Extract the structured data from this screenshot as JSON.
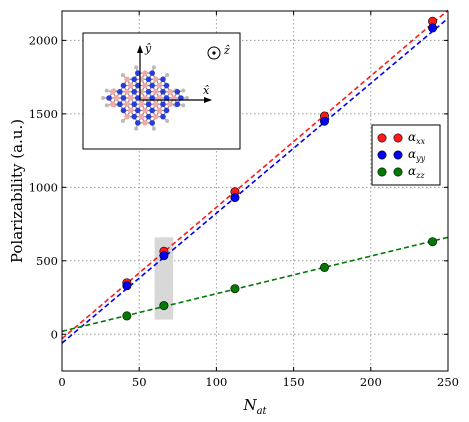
{
  "chart_data": {
    "type": "scatter",
    "xlabel": "N",
    "xlabel_sub": "at",
    "ylabel": "Polarizability (a.u.)",
    "xlim": [
      0,
      250
    ],
    "ylim": [
      -250,
      2200
    ],
    "xticks": [
      0,
      50,
      100,
      150,
      200,
      250
    ],
    "yticks": [
      0,
      500,
      1000,
      1500,
      2000
    ],
    "grid": true,
    "legend_position": "center-right",
    "series": [
      {
        "name": "α",
        "sub": "xx",
        "color": "#ff1a1a",
        "x": [
          42,
          66,
          112,
          170,
          240
        ],
        "y": [
          350,
          565,
          970,
          1485,
          2130
        ],
        "fit": {
          "x": [
            0,
            250
          ],
          "y": [
            -30,
            2205
          ]
        }
      },
      {
        "name": "α",
        "sub": "yy",
        "color": "#0000ee",
        "x": [
          42,
          66,
          112,
          170,
          240
        ],
        "y": [
          330,
          535,
          930,
          1450,
          2085
        ],
        "fit": {
          "x": [
            0,
            250
          ],
          "y": [
            -60,
            2150
          ]
        }
      },
      {
        "name": "α",
        "sub": "zz",
        "color": "#007a00",
        "x": [
          42,
          66,
          112,
          170,
          240
        ],
        "y": [
          125,
          195,
          310,
          455,
          630
        ],
        "fit": {
          "x": [
            0,
            250
          ],
          "y": [
            20,
            660
          ]
        }
      }
    ],
    "highlight_region": {
      "x": [
        60,
        72
      ],
      "y": [
        100,
        660
      ],
      "color": "#d8d8d8"
    },
    "inset": {
      "axis_y": "ŷ",
      "axis_x": "x̂",
      "axis_z": "ẑ",
      "atom_colors": {
        "boron": "#f1a9a9",
        "nitrogen": "#2b3bd8",
        "hydrogen": "#bbbbbb",
        "bond": "#888888"
      }
    }
  }
}
